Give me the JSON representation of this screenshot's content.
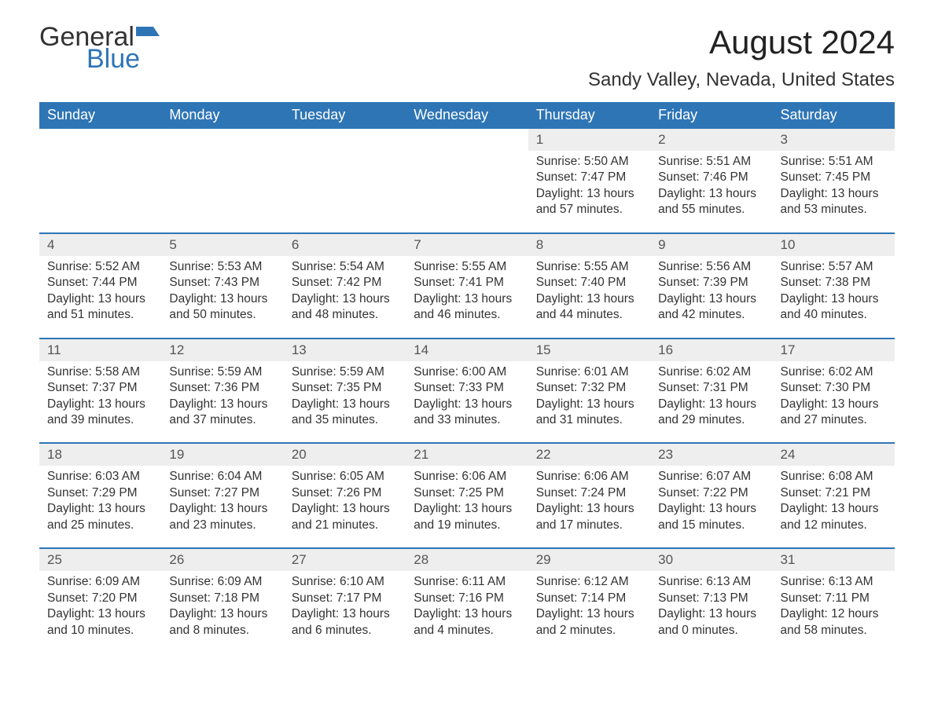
{
  "logo": {
    "text_general": "General",
    "text_blue": "Blue",
    "flag_color": "#2e75b6"
  },
  "title": "August 2024",
  "location": "Sandy Valley, Nevada, United States",
  "colors": {
    "header_bg": "#2e75b6",
    "header_text": "#ffffff",
    "daynum_bg": "#eeeeee",
    "row_border": "#2e75b6",
    "body_text": "#333333"
  },
  "font": {
    "family": "Arial",
    "th_size": 18,
    "title_size": 42,
    "loc_size": 24,
    "cell_size": 15.5
  },
  "weekdays": [
    "Sunday",
    "Monday",
    "Tuesday",
    "Wednesday",
    "Thursday",
    "Friday",
    "Saturday"
  ],
  "weeks": [
    [
      null,
      null,
      null,
      null,
      {
        "d": "1",
        "sr": "5:50 AM",
        "ss": "7:47 PM",
        "dl": "13 hours and 57 minutes."
      },
      {
        "d": "2",
        "sr": "5:51 AM",
        "ss": "7:46 PM",
        "dl": "13 hours and 55 minutes."
      },
      {
        "d": "3",
        "sr": "5:51 AM",
        "ss": "7:45 PM",
        "dl": "13 hours and 53 minutes."
      }
    ],
    [
      {
        "d": "4",
        "sr": "5:52 AM",
        "ss": "7:44 PM",
        "dl": "13 hours and 51 minutes."
      },
      {
        "d": "5",
        "sr": "5:53 AM",
        "ss": "7:43 PM",
        "dl": "13 hours and 50 minutes."
      },
      {
        "d": "6",
        "sr": "5:54 AM",
        "ss": "7:42 PM",
        "dl": "13 hours and 48 minutes."
      },
      {
        "d": "7",
        "sr": "5:55 AM",
        "ss": "7:41 PM",
        "dl": "13 hours and 46 minutes."
      },
      {
        "d": "8",
        "sr": "5:55 AM",
        "ss": "7:40 PM",
        "dl": "13 hours and 44 minutes."
      },
      {
        "d": "9",
        "sr": "5:56 AM",
        "ss": "7:39 PM",
        "dl": "13 hours and 42 minutes."
      },
      {
        "d": "10",
        "sr": "5:57 AM",
        "ss": "7:38 PM",
        "dl": "13 hours and 40 minutes."
      }
    ],
    [
      {
        "d": "11",
        "sr": "5:58 AM",
        "ss": "7:37 PM",
        "dl": "13 hours and 39 minutes."
      },
      {
        "d": "12",
        "sr": "5:59 AM",
        "ss": "7:36 PM",
        "dl": "13 hours and 37 minutes."
      },
      {
        "d": "13",
        "sr": "5:59 AM",
        "ss": "7:35 PM",
        "dl": "13 hours and 35 minutes."
      },
      {
        "d": "14",
        "sr": "6:00 AM",
        "ss": "7:33 PM",
        "dl": "13 hours and 33 minutes."
      },
      {
        "d": "15",
        "sr": "6:01 AM",
        "ss": "7:32 PM",
        "dl": "13 hours and 31 minutes."
      },
      {
        "d": "16",
        "sr": "6:02 AM",
        "ss": "7:31 PM",
        "dl": "13 hours and 29 minutes."
      },
      {
        "d": "17",
        "sr": "6:02 AM",
        "ss": "7:30 PM",
        "dl": "13 hours and 27 minutes."
      }
    ],
    [
      {
        "d": "18",
        "sr": "6:03 AM",
        "ss": "7:29 PM",
        "dl": "13 hours and 25 minutes."
      },
      {
        "d": "19",
        "sr": "6:04 AM",
        "ss": "7:27 PM",
        "dl": "13 hours and 23 minutes."
      },
      {
        "d": "20",
        "sr": "6:05 AM",
        "ss": "7:26 PM",
        "dl": "13 hours and 21 minutes."
      },
      {
        "d": "21",
        "sr": "6:06 AM",
        "ss": "7:25 PM",
        "dl": "13 hours and 19 minutes."
      },
      {
        "d": "22",
        "sr": "6:06 AM",
        "ss": "7:24 PM",
        "dl": "13 hours and 17 minutes."
      },
      {
        "d": "23",
        "sr": "6:07 AM",
        "ss": "7:22 PM",
        "dl": "13 hours and 15 minutes."
      },
      {
        "d": "24",
        "sr": "6:08 AM",
        "ss": "7:21 PM",
        "dl": "13 hours and 12 minutes."
      }
    ],
    [
      {
        "d": "25",
        "sr": "6:09 AM",
        "ss": "7:20 PM",
        "dl": "13 hours and 10 minutes."
      },
      {
        "d": "26",
        "sr": "6:09 AM",
        "ss": "7:18 PM",
        "dl": "13 hours and 8 minutes."
      },
      {
        "d": "27",
        "sr": "6:10 AM",
        "ss": "7:17 PM",
        "dl": "13 hours and 6 minutes."
      },
      {
        "d": "28",
        "sr": "6:11 AM",
        "ss": "7:16 PM",
        "dl": "13 hours and 4 minutes."
      },
      {
        "d": "29",
        "sr": "6:12 AM",
        "ss": "7:14 PM",
        "dl": "13 hours and 2 minutes."
      },
      {
        "d": "30",
        "sr": "6:13 AM",
        "ss": "7:13 PM",
        "dl": "13 hours and 0 minutes."
      },
      {
        "d": "31",
        "sr": "6:13 AM",
        "ss": "7:11 PM",
        "dl": "12 hours and 58 minutes."
      }
    ]
  ],
  "labels": {
    "sunrise": "Sunrise: ",
    "sunset": "Sunset: ",
    "daylight": "Daylight: "
  }
}
